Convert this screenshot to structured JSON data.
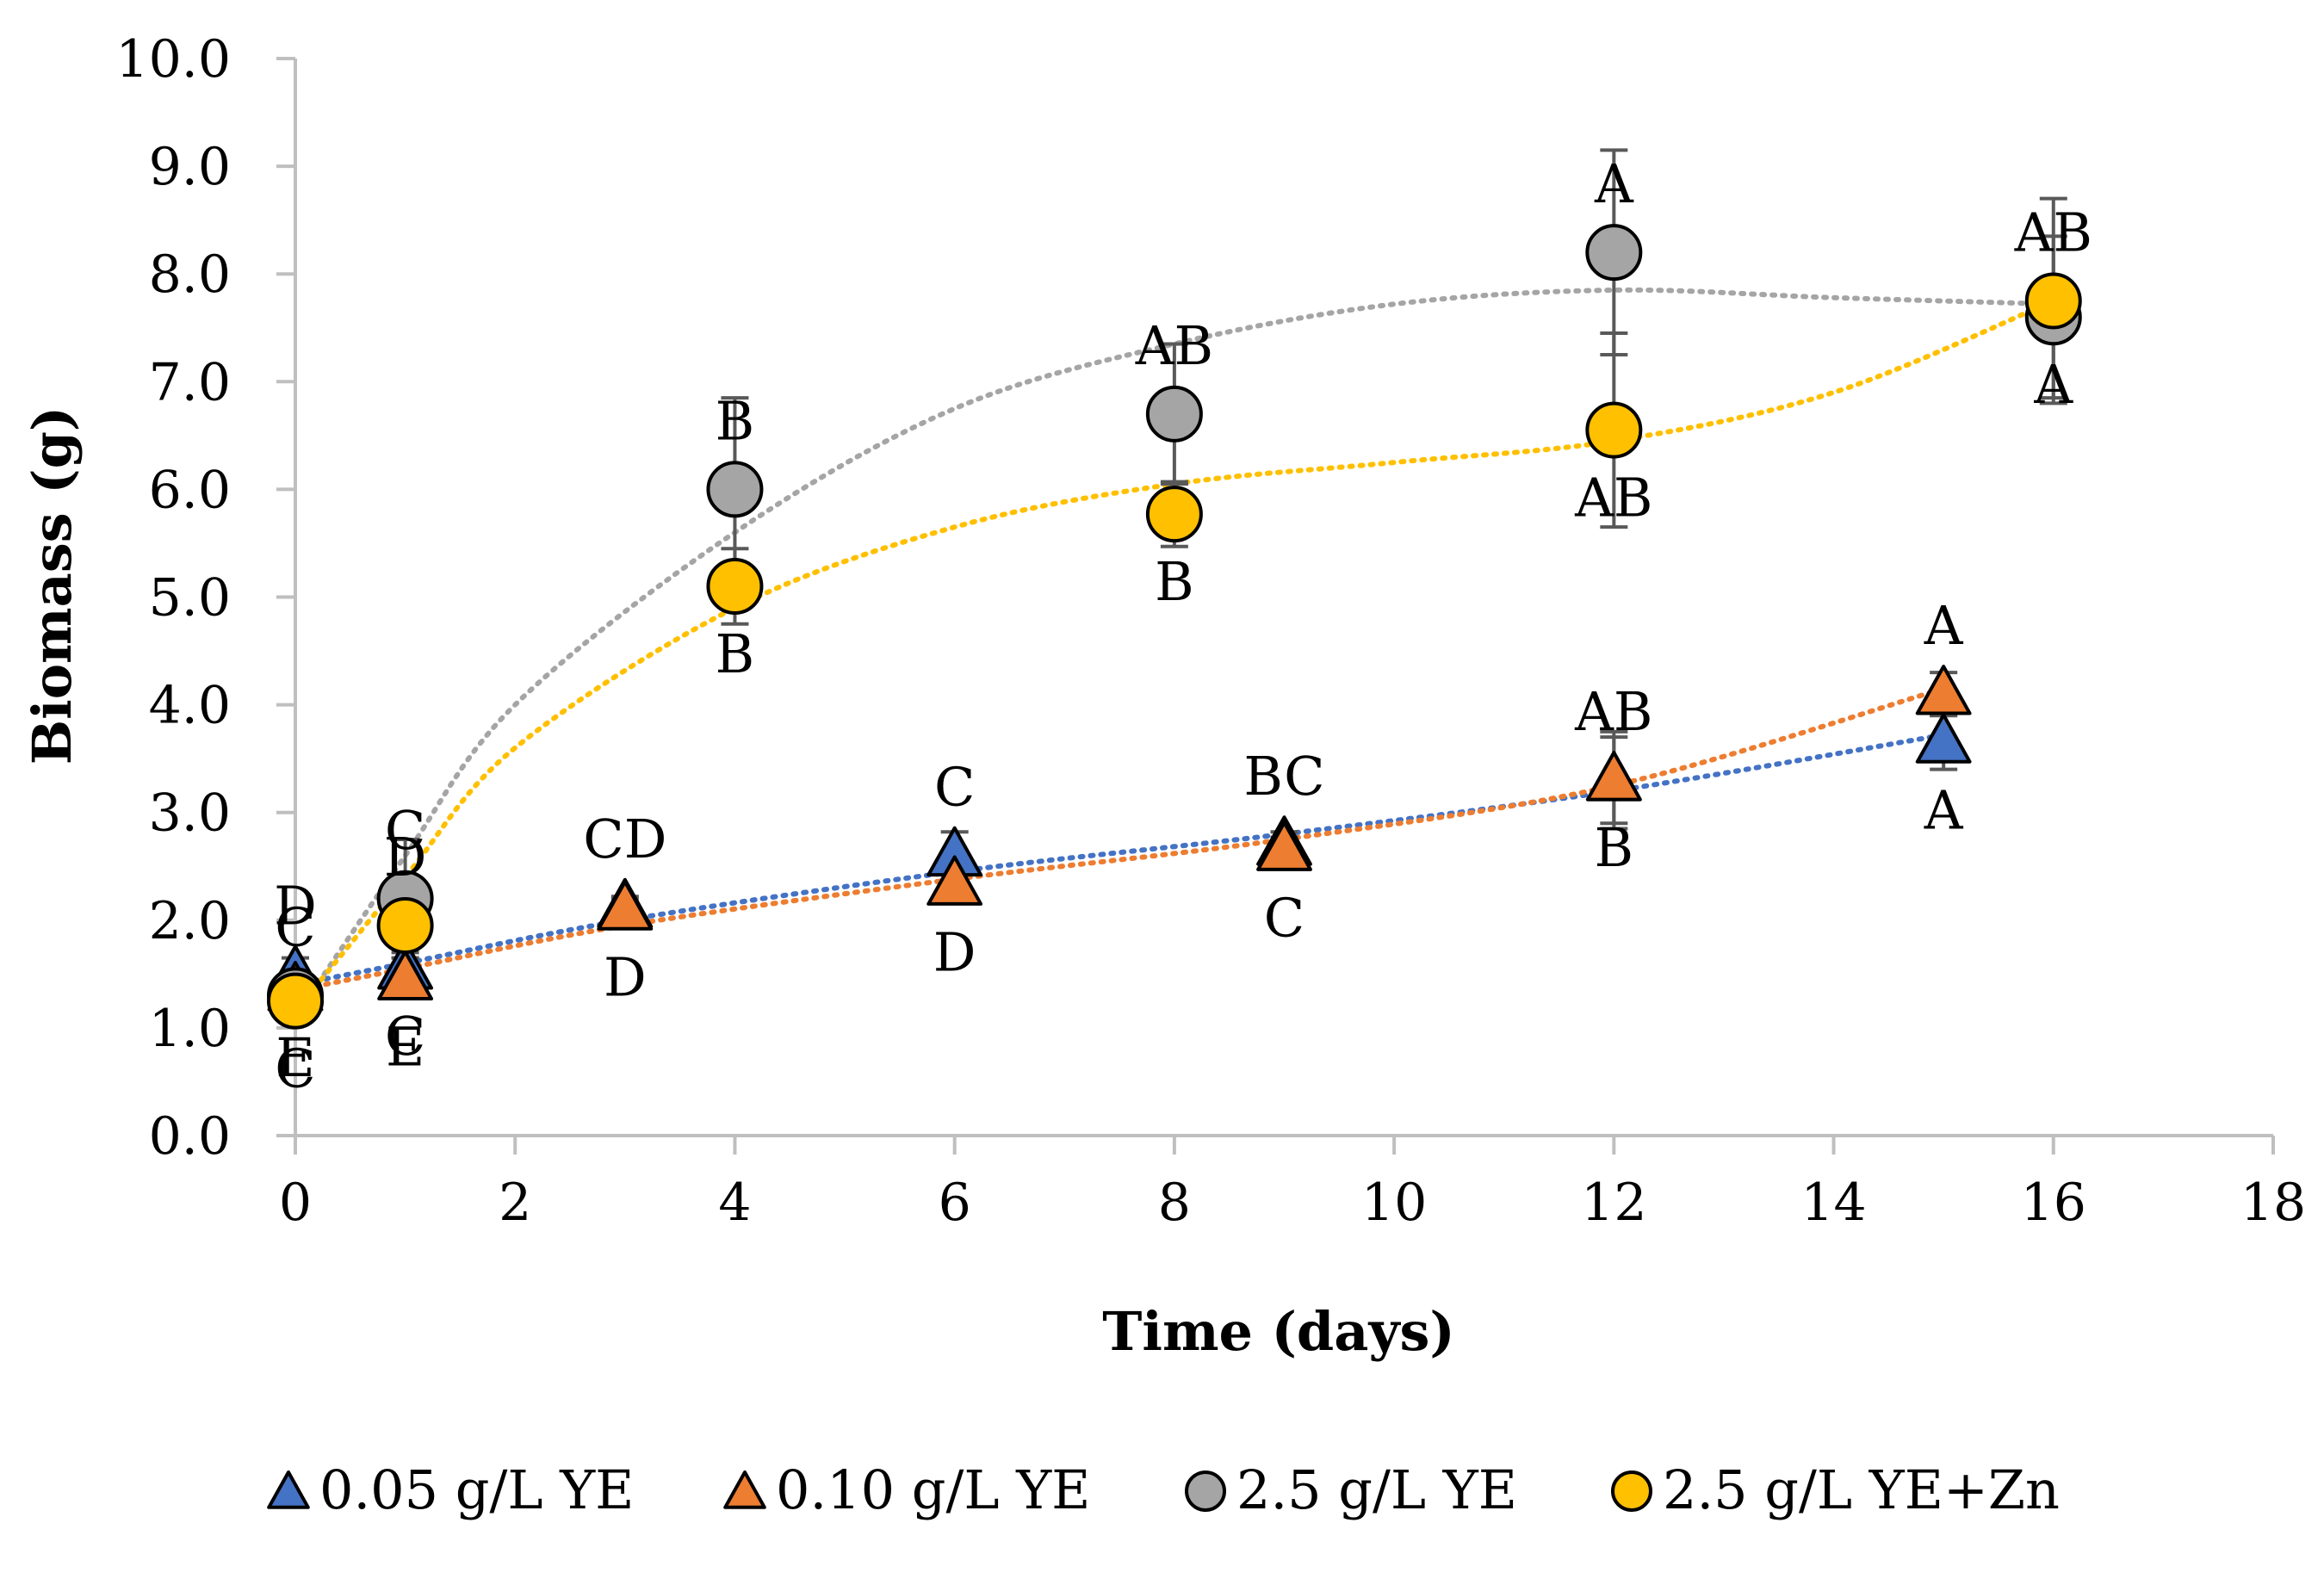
{
  "chart_data": {
    "type": "scatter",
    "title": "",
    "xlabel": "Time (days)",
    "ylabel": "Biomass (g)",
    "xlim": [
      0,
      18
    ],
    "ylim": [
      0,
      10
    ],
    "x_ticks": [
      0,
      2,
      4,
      6,
      8,
      10,
      12,
      14,
      16,
      18
    ],
    "x_tick_labels": [
      "0",
      "2",
      "4",
      "6",
      "8",
      "10",
      "12",
      "14",
      "16",
      "18"
    ],
    "y_ticks": [
      0,
      1,
      2,
      3,
      4,
      5,
      6,
      7,
      8,
      9,
      10
    ],
    "y_tick_labels": [
      "0.0",
      "1.0",
      "2.0",
      "3.0",
      "4.0",
      "5.0",
      "6.0",
      "7.0",
      "8.0",
      "9.0",
      "10.0"
    ],
    "grid": false,
    "legend_position": "bottom",
    "trendlines": "dotted polynomial",
    "series": [
      {
        "name": "0.05 g/L YE",
        "marker": "triangle",
        "color": "#4472C4",
        "trend_color": "#4472C4",
        "points": [
          {
            "x": 0,
            "y": 1.5,
            "err": 0.15,
            "letter": "D",
            "letter_pos": "above"
          },
          {
            "x": 1,
            "y": 1.55,
            "err": 0.15,
            "letter": "C",
            "letter_pos": "below"
          },
          {
            "x": 3,
            "y": 2.12,
            "err": 0.1,
            "letter": "CD",
            "letter_pos": "above"
          },
          {
            "x": 6,
            "y": 2.6,
            "err": 0.22,
            "letter": "C",
            "letter_pos": "above"
          },
          {
            "x": 9,
            "y": 2.7,
            "err": 0.12,
            "letter": "BC",
            "letter_pos": "above"
          },
          {
            "x": 12,
            "y": 3.3,
            "err": 0.45,
            "letter": "AB",
            "letter_pos": "above"
          },
          {
            "x": 15,
            "y": 3.65,
            "err": 0.25,
            "letter": "A",
            "letter_pos": "below"
          }
        ],
        "trend": [
          [
            0,
            1.4
          ],
          [
            1,
            1.6
          ],
          [
            3,
            2.0
          ],
          [
            6,
            2.45
          ],
          [
            9,
            2.8
          ],
          [
            12,
            3.2
          ],
          [
            15,
            3.72
          ]
        ]
      },
      {
        "name": "0.10 g/L YE",
        "marker": "triangle",
        "color": "#ED7D31",
        "trend_color": "#ED7D31",
        "points": [
          {
            "x": 0,
            "y": 1.35,
            "err": 0.15,
            "letter": "E",
            "letter_pos": "below"
          },
          {
            "x": 1,
            "y": 1.45,
            "err": 0.15,
            "letter": "E",
            "letter_pos": "below"
          },
          {
            "x": 3,
            "y": 2.1,
            "err": 0.1,
            "letter": "D",
            "letter_pos": "below"
          },
          {
            "x": 6,
            "y": 2.33,
            "err": 0.15,
            "letter": "D",
            "letter_pos": "below"
          },
          {
            "x": 9,
            "y": 2.65,
            "err": 0.12,
            "letter": "C",
            "letter_pos": "below"
          },
          {
            "x": 12,
            "y": 3.3,
            "err": 0.4,
            "letter": "B",
            "letter_pos": "below"
          },
          {
            "x": 15,
            "y": 4.1,
            "err": 0.2,
            "letter": "A",
            "letter_pos": "above"
          }
        ],
        "trend": [
          [
            0,
            1.35
          ],
          [
            1,
            1.55
          ],
          [
            3,
            1.95
          ],
          [
            6,
            2.38
          ],
          [
            9,
            2.75
          ],
          [
            12,
            3.25
          ],
          [
            15,
            4.15
          ]
        ]
      },
      {
        "name": "2.5 g/L YE",
        "marker": "circle",
        "color": "#A5A5A5",
        "trend_color": "#A5A5A5",
        "points": [
          {
            "x": 0,
            "y": 1.3,
            "err": 0.2,
            "letter": "C",
            "letter_pos": "above"
          },
          {
            "x": 1,
            "y": 2.2,
            "err": 0.55,
            "letter": "C",
            "letter_pos": "above"
          },
          {
            "x": 4,
            "y": 6.0,
            "err": 0.85,
            "letter": "B",
            "letter_pos": "above"
          },
          {
            "x": 8,
            "y": 6.7,
            "err": 0.65,
            "letter": "AB",
            "letter_pos": "above"
          },
          {
            "x": 12,
            "y": 8.2,
            "err": 0.95,
            "letter": "A",
            "letter_pos": "above"
          },
          {
            "x": 16,
            "y": 7.6,
            "err": 0.75,
            "letter": "A",
            "letter_pos": "below"
          }
        ],
        "trend": [
          [
            0,
            1.1
          ],
          [
            1,
            2.6
          ],
          [
            2,
            4.0
          ],
          [
            4,
            5.6
          ],
          [
            6,
            6.75
          ],
          [
            8,
            7.35
          ],
          [
            10,
            7.72
          ],
          [
            12,
            7.85
          ],
          [
            14,
            7.78
          ],
          [
            16,
            7.72
          ]
        ]
      },
      {
        "name": "2.5 g/L YE+Zn",
        "marker": "circle",
        "color": "#FFC000",
        "trend_color": "#FFC000",
        "points": [
          {
            "x": 0,
            "y": 1.25,
            "err": 0.2,
            "letter": "C",
            "letter_pos": "below"
          },
          {
            "x": 1,
            "y": 1.95,
            "err": 0.3,
            "letter": "D",
            "letter_pos": "above"
          },
          {
            "x": 4,
            "y": 5.1,
            "err": 0.35,
            "letter": "B",
            "letter_pos": "below"
          },
          {
            "x": 8,
            "y": 5.77,
            "err": 0.3,
            "letter": "B",
            "letter_pos": "below"
          },
          {
            "x": 12,
            "y": 6.55,
            "err": 0.9,
            "letter": "AB",
            "letter_pos": "below"
          },
          {
            "x": 16,
            "y": 7.75,
            "err": 0.95,
            "letter": "AB",
            "letter_pos": "above"
          }
        ],
        "trend": [
          [
            0,
            1.15
          ],
          [
            1,
            2.4
          ],
          [
            2,
            3.6
          ],
          [
            4,
            4.9
          ],
          [
            6,
            5.65
          ],
          [
            8,
            6.05
          ],
          [
            10,
            6.25
          ],
          [
            12,
            6.45
          ],
          [
            14,
            6.9
          ],
          [
            16,
            7.75
          ]
        ]
      }
    ]
  }
}
